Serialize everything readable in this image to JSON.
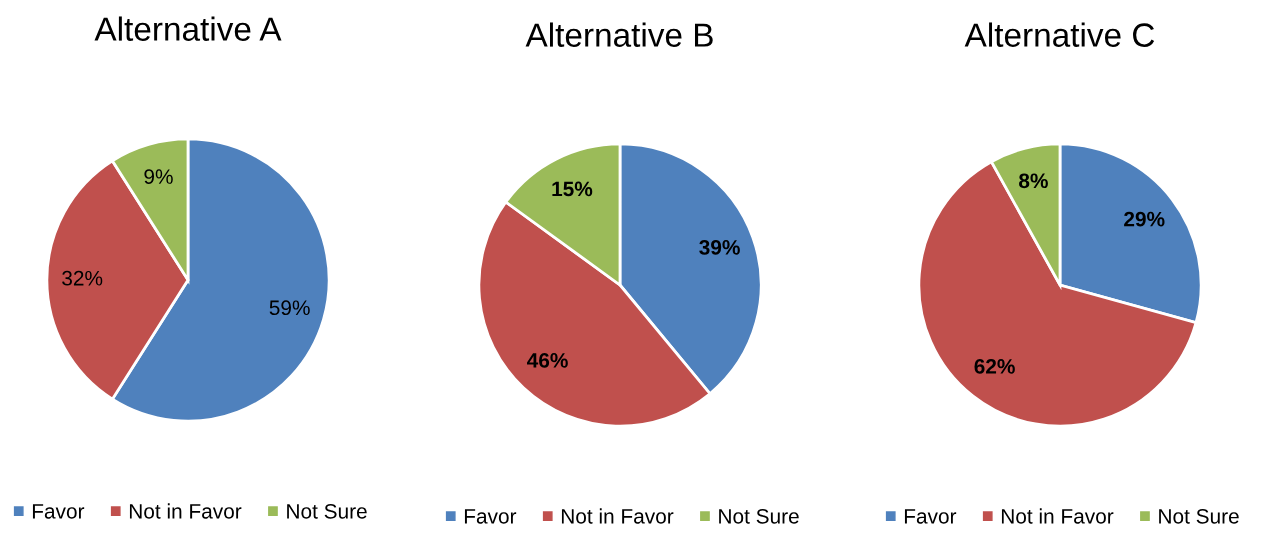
{
  "chart_data": [
    {
      "type": "pie",
      "title": "Alternative A",
      "categories": [
        "Favor",
        "Not in Favor",
        "Not Sure"
      ],
      "values": [
        59,
        32,
        9
      ],
      "colors": [
        "#4f81bd",
        "#c0504d",
        "#9bbb59"
      ],
      "value_labels": [
        "59%",
        "32%",
        "9%"
      ],
      "legend": "bottom"
    },
    {
      "type": "pie",
      "title": "Alternative B",
      "categories": [
        "Favor",
        "Not in Favor",
        "Not Sure"
      ],
      "values": [
        39,
        46,
        15
      ],
      "colors": [
        "#4f81bd",
        "#c0504d",
        "#9bbb59"
      ],
      "value_labels": [
        "39%",
        "46%",
        "15%"
      ],
      "legend": "bottom"
    },
    {
      "type": "pie",
      "title": "Alternative C",
      "categories": [
        "Favor",
        "Not in Favor",
        "Not Sure"
      ],
      "values": [
        29,
        62,
        8
      ],
      "colors": [
        "#4f81bd",
        "#c0504d",
        "#9bbb59"
      ],
      "value_labels": [
        "29%",
        "62%",
        "8%"
      ],
      "legend": "bottom"
    }
  ]
}
